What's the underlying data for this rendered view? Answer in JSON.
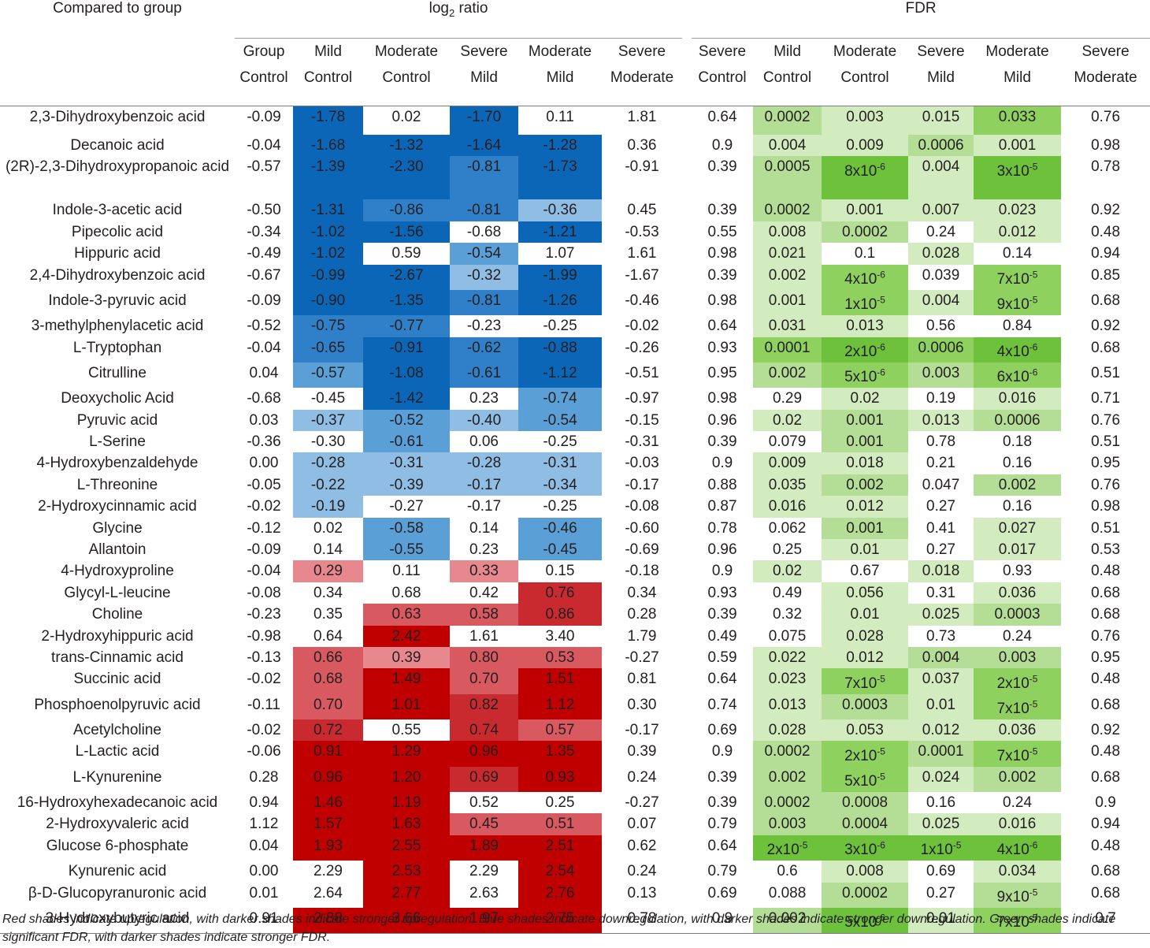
{
  "header": {
    "corner": "Compared to group",
    "log2_label_prefix": "log",
    "log2_label_sub": "2",
    "log2_label_suffix": " ratio",
    "fdr_label": "FDR"
  },
  "columns": [
    {
      "top": "Group",
      "bottom": "Control"
    },
    {
      "top": "Mild",
      "bottom": "Control"
    },
    {
      "top": "Moderate",
      "bottom": "Control"
    },
    {
      "top": "Severe",
      "bottom": "Mild"
    },
    {
      "top": "Moderate",
      "bottom": "Mild"
    },
    {
      "top": "Severe",
      "bottom": "Moderate"
    },
    {
      "top": "Severe",
      "bottom": "Control"
    },
    {
      "top": "Mild",
      "bottom": "Control"
    },
    {
      "top": "Moderate",
      "bottom": "Control"
    },
    {
      "top": "Severe",
      "bottom": "Mild"
    },
    {
      "top": "Moderate",
      "bottom": "Mild"
    },
    {
      "top": "Severe",
      "bottom": "Moderate"
    }
  ],
  "rows": [
    {
      "name": "2,3-Dihydroxybenzoic acid",
      "log2": [
        "-0.09",
        "-1.78",
        "0.02",
        "-1.70",
        "0.11",
        "1.81"
      ],
      "fdr": [
        "0.64",
        "0.0002",
        "0.003",
        "0.015",
        "0.033",
        "0.76"
      ]
    },
    {
      "name": "Decanoic acid",
      "log2": [
        "-0.04",
        "-1.68",
        "-1.32",
        "-1.64",
        "-1.28",
        "0.36"
      ],
      "fdr": [
        "0.9",
        "0.004",
        "0.009",
        "0.0006",
        "0.001",
        "0.98"
      ]
    },
    {
      "name": "(2R)-2,3-Dihydroxypropanoic acid",
      "log2": [
        "-0.57",
        "-1.39",
        "-2.30",
        "-0.81",
        "-1.73",
        "-0.91"
      ],
      "fdr": [
        "0.39",
        "0.0005",
        "8x10-6",
        "0.004",
        "3x10-5",
        "0.78"
      ]
    },
    {
      "name": "Indole-3-acetic acid",
      "log2": [
        "-0.50",
        "-1.31",
        "-0.86",
        "-0.81",
        "-0.36",
        "0.45"
      ],
      "fdr": [
        "0.39",
        "0.0002",
        "0.001",
        "0.007",
        "0.023",
        "0.92"
      ]
    },
    {
      "name": "Pipecolic acid",
      "log2": [
        "-0.34",
        "-1.02",
        "-1.56",
        "-0.68",
        "-1.21",
        "-0.53"
      ],
      "fdr": [
        "0.55",
        "0.008",
        "0.0002",
        "0.24",
        "0.012",
        "0.48"
      ]
    },
    {
      "name": "Hippuric acid",
      "log2": [
        "-0.49",
        "-1.02",
        "0.59",
        "-0.54",
        "1.07",
        "1.61"
      ],
      "fdr": [
        "0.98",
        "0.021",
        "0.1",
        "0.028",
        "0.14",
        "0.94"
      ]
    },
    {
      "name": "2,4-Dihydroxybenzoic acid",
      "log2": [
        "-0.67",
        "-0.99",
        "-2.67",
        "-0.32",
        "-1.99",
        "-1.67"
      ],
      "fdr": [
        "0.39",
        "0.002",
        "4x10-6",
        "0.039",
        "7x10-5",
        "0.85"
      ]
    },
    {
      "name": "Indole-3-pyruvic acid",
      "log2": [
        "-0.09",
        "-0.90",
        "-1.35",
        "-0.81",
        "-1.26",
        "-0.46"
      ],
      "fdr": [
        "0.98",
        "0.001",
        "1x10-5",
        "0.004",
        "9x10-5",
        "0.68"
      ]
    },
    {
      "name": "3-methylphenylacetic acid",
      "log2": [
        "-0.52",
        "-0.75",
        "-0.77",
        "-0.23",
        "-0.25",
        "-0.02"
      ],
      "fdr": [
        "0.64",
        "0.031",
        "0.013",
        "0.56",
        "0.84",
        "0.92"
      ]
    },
    {
      "name": "L-Tryptophan",
      "log2": [
        "-0.04",
        "-0.65",
        "-0.91",
        "-0.62",
        "-0.88",
        "-0.26"
      ],
      "fdr": [
        "0.93",
        "0.0001",
        "2x10-6",
        "0.0006",
        "4x10-6",
        "0.68"
      ]
    },
    {
      "name": "Citrulline",
      "log2": [
        "0.04",
        "-0.57",
        "-1.08",
        "-0.61",
        "-1.12",
        "-0.51"
      ],
      "fdr": [
        "0.95",
        "0.002",
        "5x10-6",
        "0.003",
        "6x10-6",
        "0.51"
      ]
    },
    {
      "name": "Deoxycholic Acid",
      "log2": [
        "-0.68",
        "-0.45",
        "-1.42",
        "0.23",
        "-0.74",
        "-0.97"
      ],
      "fdr": [
        "0.98",
        "0.29",
        "0.02",
        "0.19",
        "0.016",
        "0.71"
      ]
    },
    {
      "name": "Pyruvic acid",
      "log2": [
        "0.03",
        "-0.37",
        "-0.52",
        "-0.40",
        "-0.54",
        "-0.15"
      ],
      "fdr": [
        "0.96",
        "0.02",
        "0.001",
        "0.013",
        "0.0006",
        "0.76"
      ]
    },
    {
      "name": "L-Serine",
      "log2": [
        "-0.36",
        "-0.30",
        "-0.61",
        "0.06",
        "-0.25",
        "-0.31"
      ],
      "fdr": [
        "0.39",
        "0.079",
        "0.001",
        "0.78",
        "0.18",
        "0.51"
      ]
    },
    {
      "name": "4-Hydroxybenzaldehyde",
      "log2": [
        "0.00",
        "-0.28",
        "-0.31",
        "-0.28",
        "-0.31",
        "-0.03"
      ],
      "fdr": [
        "0.9",
        "0.009",
        "0.018",
        "0.21",
        "0.16",
        "0.95"
      ]
    },
    {
      "name": "L-Threonine",
      "log2": [
        "-0.05",
        "-0.22",
        "-0.39",
        "-0.17",
        "-0.34",
        "-0.17"
      ],
      "fdr": [
        "0.88",
        "0.035",
        "0.002",
        "0.047",
        "0.002",
        "0.76"
      ]
    },
    {
      "name": "2-Hydroxycinnamic acid",
      "log2": [
        "-0.02",
        "-0.19",
        "-0.27",
        "-0.17",
        "-0.25",
        "-0.08"
      ],
      "fdr": [
        "0.87",
        "0.016",
        "0.012",
        "0.27",
        "0.16",
        "0.98"
      ]
    },
    {
      "name": "Glycine",
      "log2": [
        "-0.12",
        "0.02",
        "-0.58",
        "0.14",
        "-0.46",
        "-0.60"
      ],
      "fdr": [
        "0.78",
        "0.062",
        "0.001",
        "0.41",
        "0.027",
        "0.51"
      ]
    },
    {
      "name": "Allantoin",
      "log2": [
        "-0.09",
        "0.14",
        "-0.55",
        "0.23",
        "-0.45",
        "-0.69"
      ],
      "fdr": [
        "0.96",
        "0.25",
        "0.01",
        "0.27",
        "0.017",
        "0.53"
      ]
    },
    {
      "name": "4-Hydroxyproline",
      "log2": [
        "-0.04",
        "0.29",
        "0.11",
        "0.33",
        "0.15",
        "-0.18"
      ],
      "fdr": [
        "0.9",
        "0.02",
        "0.67",
        "0.018",
        "0.93",
        "0.48"
      ]
    },
    {
      "name": "Glycyl-L-leucine",
      "log2": [
        "-0.08",
        "0.34",
        "0.68",
        "0.42",
        "0.76",
        "0.34"
      ],
      "fdr": [
        "0.93",
        "0.49",
        "0.056",
        "0.31",
        "0.036",
        "0.68"
      ]
    },
    {
      "name": "Choline",
      "log2": [
        "-0.23",
        "0.35",
        "0.63",
        "0.58",
        "0.86",
        "0.28"
      ],
      "fdr": [
        "0.39",
        "0.32",
        "0.01",
        "0.025",
        "0.0003",
        "0.68"
      ]
    },
    {
      "name": "2-Hydroxyhippuric acid",
      "log2": [
        "-0.98",
        "0.64",
        "2.42",
        "1.61",
        "3.40",
        "1.79"
      ],
      "fdr": [
        "0.49",
        "0.075",
        "0.028",
        "0.73",
        "0.24",
        "0.76"
      ]
    },
    {
      "name": "trans-Cinnamic acid",
      "log2": [
        "-0.13",
        "0.66",
        "0.39",
        "0.80",
        "0.53",
        "-0.27"
      ],
      "fdr": [
        "0.59",
        "0.022",
        "0.012",
        "0.004",
        "0.003",
        "0.95"
      ]
    },
    {
      "name": "Succinic acid",
      "log2": [
        "-0.02",
        "0.68",
        "1.49",
        "0.70",
        "1.51",
        "0.81"
      ],
      "fdr": [
        "0.64",
        "0.023",
        "7x10-5",
        "0.037",
        "2x10-5",
        "0.48"
      ]
    },
    {
      "name": "Phosphoenolpyruvic acid",
      "log2": [
        "-0.11",
        "0.70",
        "1.01",
        "0.82",
        "1.12",
        "0.30"
      ],
      "fdr": [
        "0.74",
        "0.013",
        "0.0003",
        "0.01",
        "7x10-5",
        "0.68"
      ]
    },
    {
      "name": "Acetylcholine",
      "log2": [
        "-0.02",
        "0.72",
        "0.55",
        "0.74",
        "0.57",
        "-0.17"
      ],
      "fdr": [
        "0.69",
        "0.028",
        "0.053",
        "0.012",
        "0.036",
        "0.92"
      ]
    },
    {
      "name": "L-Lactic acid",
      "log2": [
        "-0.06",
        "0.91",
        "1.29",
        "0.96",
        "1.35",
        "0.39"
      ],
      "fdr": [
        "0.9",
        "0.0002",
        "2x10-5",
        "0.0001",
        "7x10-5",
        "0.48"
      ]
    },
    {
      "name": "L-Kynurenine",
      "log2": [
        "0.28",
        "0.96",
        "1.20",
        "0.69",
        "0.93",
        "0.24"
      ],
      "fdr": [
        "0.39",
        "0.002",
        "5x10-5",
        "0.024",
        "0.002",
        "0.68"
      ]
    },
    {
      "name": "16-Hydroxyhexadecanoic acid",
      "log2": [
        "0.94",
        "1.46",
        "1.19",
        "0.52",
        "0.25",
        "-0.27"
      ],
      "fdr": [
        "0.39",
        "0.0002",
        "0.0008",
        "0.16",
        "0.24",
        "0.9"
      ]
    },
    {
      "name": "2-Hydroxyvaleric acid",
      "log2": [
        "1.12",
        "1.57",
        "1.63",
        "0.45",
        "0.51",
        "0.07"
      ],
      "fdr": [
        "0.79",
        "0.003",
        "0.0004",
        "0.025",
        "0.016",
        "0.94"
      ]
    },
    {
      "name": "Glucose 6-phosphate",
      "log2": [
        "0.04",
        "1.93",
        "2.55",
        "1.89",
        "2.51",
        "0.62"
      ],
      "fdr": [
        "0.64",
        "2x10-5",
        "3x10-6",
        "1x10-5",
        "4x10-6",
        "0.48"
      ]
    },
    {
      "name": "Kynurenic acid",
      "log2": [
        "0.00",
        "2.29",
        "2.53",
        "2.29",
        "2.54",
        "0.24"
      ],
      "fdr": [
        "0.79",
        "0.6",
        "0.008",
        "0.69",
        "0.034",
        "0.68"
      ]
    },
    {
      "name": "β-D-Glucopyranuronic acid",
      "log2": [
        "0.01",
        "2.64",
        "2.77",
        "2.63",
        "2.76",
        "0.13"
      ],
      "fdr": [
        "0.69",
        "0.088",
        "0.0002",
        "0.27",
        "9x10-5",
        "0.68"
      ]
    },
    {
      "name": "3-Hydroxybutyric acid",
      "log2": [
        "0.91",
        "2.88",
        "3.66",
        "1.97",
        "2.75",
        "0.78"
      ],
      "fdr": [
        "0.9",
        "0.002",
        "5x10-6",
        "0.01",
        "7x10-5",
        "0.7"
      ]
    }
  ],
  "shading": {
    "note": "cell shading level per row for shaded columns; log2 columns 2-5 (index 1-4), FDR columns 8-11 (index 1-4); positive=red level, negative=blue level, fdr=green level",
    "log2_levels": [
      [
        -4,
        0,
        -4,
        0
      ],
      [
        -4,
        -4,
        -4,
        -4
      ],
      [
        -4,
        -4,
        -3,
        -4
      ],
      [
        -4,
        -3,
        -3,
        -1
      ],
      [
        -4,
        -4,
        0,
        -4
      ],
      [
        -4,
        0,
        -2,
        0
      ],
      [
        -4,
        -4,
        -1,
        -4
      ],
      [
        -4,
        -4,
        -3,
        -4
      ],
      [
        -3,
        -3,
        0,
        0
      ],
      [
        -3,
        -4,
        -3,
        -4
      ],
      [
        -2,
        -4,
        -3,
        -4
      ],
      [
        0,
        -4,
        0,
        -2
      ],
      [
        -1,
        -2,
        -1,
        -2
      ],
      [
        0,
        -2,
        0,
        0
      ],
      [
        -1,
        -1,
        -1,
        -1
      ],
      [
        -1,
        -1,
        -1,
        -1
      ],
      [
        -1,
        0,
        0,
        0
      ],
      [
        0,
        -2,
        0,
        -2
      ],
      [
        0,
        -2,
        0,
        -2
      ],
      [
        1,
        0,
        1,
        0
      ],
      [
        0,
        0,
        0,
        3
      ],
      [
        0,
        2,
        2,
        3
      ],
      [
        0,
        4,
        0,
        0
      ],
      [
        2,
        1,
        2,
        2
      ],
      [
        2,
        4,
        2,
        4
      ],
      [
        2,
        4,
        3,
        4
      ],
      [
        3,
        0,
        3,
        2
      ],
      [
        4,
        4,
        4,
        4
      ],
      [
        4,
        4,
        3,
        4
      ],
      [
        4,
        4,
        0,
        0
      ],
      [
        4,
        4,
        2,
        2
      ],
      [
        4,
        4,
        4,
        4
      ],
      [
        0,
        4,
        0,
        4
      ],
      [
        0,
        4,
        0,
        4
      ],
      [
        4,
        4,
        4,
        4
      ]
    ],
    "fdr_levels": [
      [
        2,
        1,
        1,
        3
      ],
      [
        1,
        1,
        2,
        1
      ],
      [
        2,
        4,
        1,
        4
      ],
      [
        2,
        1,
        1,
        1
      ],
      [
        1,
        2,
        0,
        1
      ],
      [
        1,
        0,
        1,
        0
      ],
      [
        1,
        3,
        0,
        3
      ],
      [
        1,
        3,
        1,
        3
      ],
      [
        1,
        1,
        0,
        0
      ],
      [
        3,
        4,
        3,
        4
      ],
      [
        2,
        3,
        2,
        3
      ],
      [
        0,
        1,
        0,
        1
      ],
      [
        1,
        2,
        1,
        2
      ],
      [
        0,
        2,
        0,
        0
      ],
      [
        1,
        1,
        0,
        0
      ],
      [
        1,
        2,
        0,
        2
      ],
      [
        1,
        1,
        0,
        0
      ],
      [
        0,
        2,
        0,
        1
      ],
      [
        0,
        1,
        0,
        1
      ],
      [
        1,
        0,
        1,
        0
      ],
      [
        0,
        1,
        0,
        1
      ],
      [
        0,
        1,
        1,
        2
      ],
      [
        0,
        1,
        0,
        0
      ],
      [
        1,
        1,
        2,
        2
      ],
      [
        1,
        3,
        1,
        3
      ],
      [
        1,
        2,
        1,
        3
      ],
      [
        1,
        1,
        1,
        1
      ],
      [
        2,
        3,
        2,
        3
      ],
      [
        2,
        3,
        1,
        2
      ],
      [
        2,
        2,
        0,
        0
      ],
      [
        2,
        2,
        1,
        1
      ],
      [
        4,
        4,
        4,
        4
      ],
      [
        0,
        1,
        0,
        1
      ],
      [
        0,
        2,
        0,
        2
      ],
      [
        2,
        4,
        1,
        3
      ]
    ]
  },
  "colors": {
    "blue": [
      "#ffffff",
      "#c6dbef",
      "#8fbde3",
      "#5a9fd6",
      "#2f80c8",
      "#0b66b8"
    ],
    "red": [
      "#ffffff",
      "#f0b8bd",
      "#e7888e",
      "#d85a60",
      "#c92a30",
      "#c00000"
    ],
    "green": [
      "#ffffff",
      "#eef7e6",
      "#d3ecbf",
      "#b4de95",
      "#8fd15f",
      "#6ec13a"
    ]
  },
  "footnote": "Red shades indicate upregulation, with darker shades indicate stronger upregulation. Blue shades indicate downregulation, with darker shades indicate stronger downregulation. Green shades indicate significant FDR, with darker shades indicate stronger FDR."
}
